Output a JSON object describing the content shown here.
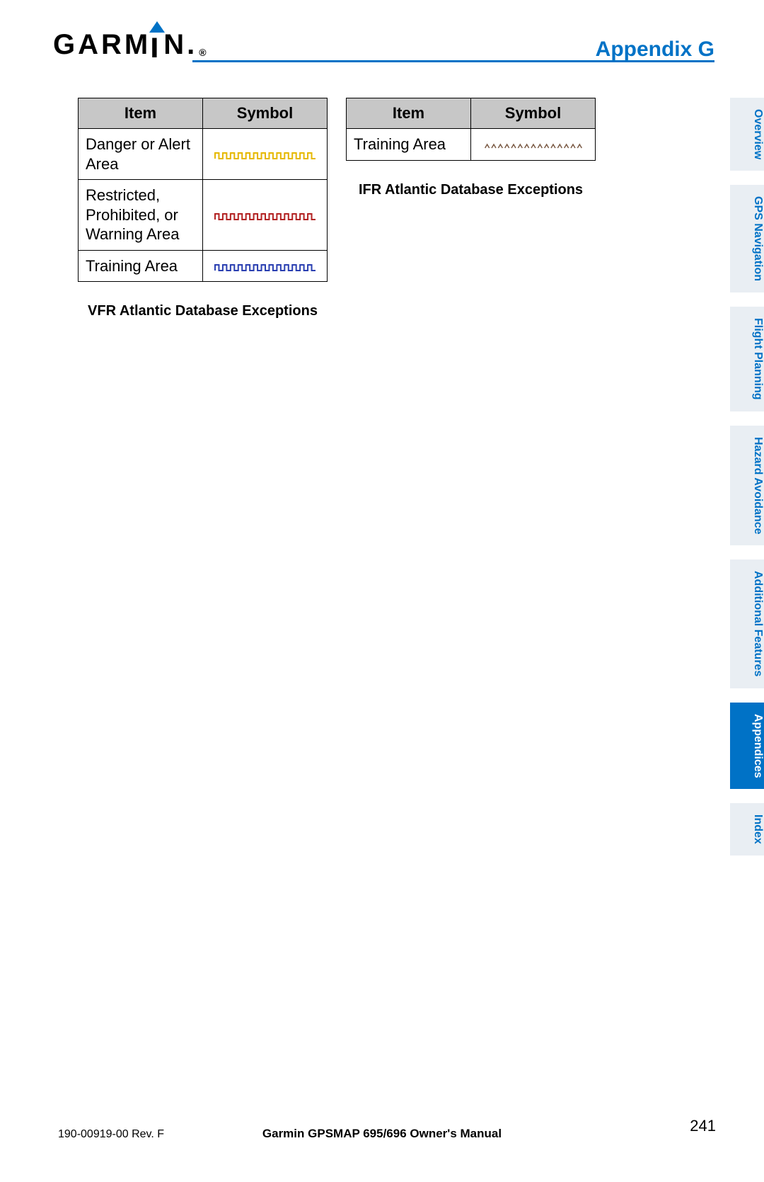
{
  "brand": {
    "name_letters": [
      "G",
      "A",
      "R",
      "M",
      "I",
      "N"
    ],
    "registered": "®",
    "triangle_color": "#0072c6",
    "dot_color": "#0072c6"
  },
  "header": {
    "title": "Appendix G",
    "rule_color": "#0072c6",
    "title_color": "#0072c6"
  },
  "tables": {
    "left": {
      "columns": [
        "Item",
        "Symbol"
      ],
      "rows": [
        {
          "item": "Danger or Alert Area",
          "symbol_color": "#e6b800",
          "symbol_type": "castellated"
        },
        {
          "item": "Restricted, Prohibited, or Warning Area",
          "symbol_color": "#b22222",
          "symbol_type": "castellated"
        },
        {
          "item": "Training Area",
          "symbol_color": "#2a3fb1",
          "symbol_type": "castellated"
        }
      ],
      "caption": "VFR Atlantic Database Exceptions"
    },
    "right": {
      "columns": [
        "Item",
        "Symbol"
      ],
      "rows": [
        {
          "item": "Training Area",
          "symbol_color": "#7a5a44",
          "symbol_type": "carets"
        }
      ],
      "caption": "IFR Atlantic Database Exceptions"
    }
  },
  "tabs": [
    {
      "label": "Overview",
      "active": false
    },
    {
      "label": "GPS Navigation",
      "active": false
    },
    {
      "label": "Flight Planning",
      "active": false
    },
    {
      "label": "Hazard Avoidance",
      "active": false
    },
    {
      "label": "Additional Features",
      "active": false
    },
    {
      "label": "Appendices",
      "active": true
    },
    {
      "label": "Index",
      "active": false
    }
  ],
  "footer": {
    "left": "190-00919-00 Rev. F",
    "center": "Garmin GPSMAP 695/696 Owner's Manual",
    "page": "241"
  },
  "style": {
    "header_bg": "#c7c7c7",
    "border_color": "#000000",
    "tab_bg": "#e9eef3",
    "tab_fg": "#0072c6",
    "tab_active_bg": "#0072c6",
    "tab_active_fg": "#ffffff",
    "symbol_stroke_width": 2
  }
}
